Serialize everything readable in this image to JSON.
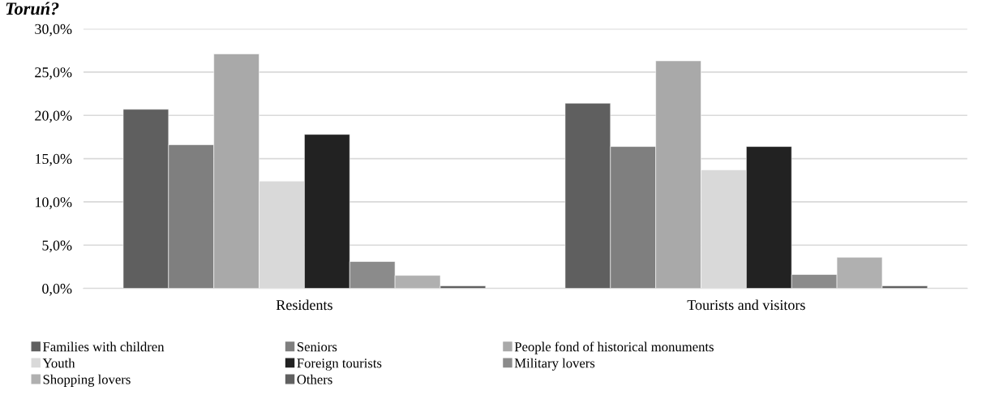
{
  "chart_data": {
    "type": "bar",
    "title": "Toruń?",
    "categories": [
      "Residents",
      "Tourists and visitors"
    ],
    "series": [
      {
        "name": "Families with children",
        "color": "#5f5f5f",
        "values": [
          20.7,
          21.4
        ]
      },
      {
        "name": "Seniors",
        "color": "#7f7f7f",
        "values": [
          16.6,
          16.4
        ]
      },
      {
        "name": "People fond of historical monuments",
        "color": "#a9a9a9",
        "values": [
          27.1,
          26.3
        ]
      },
      {
        "name": "Youth",
        "color": "#d9d9d9",
        "values": [
          12.4,
          13.7
        ]
      },
      {
        "name": "Foreign tourists",
        "color": "#222222",
        "values": [
          17.8,
          16.4
        ]
      },
      {
        "name": "Military lovers",
        "color": "#8b8b8b",
        "values": [
          3.1,
          1.6
        ]
      },
      {
        "name": "Shopping lovers",
        "color": "#b0b0b0",
        "values": [
          1.5,
          3.6
        ]
      },
      {
        "name": "Others",
        "color": "#606060",
        "values": [
          0.3,
          0.3
        ]
      }
    ],
    "ylim": [
      0,
      30
    ],
    "yticks": [
      {
        "value": 0,
        "label": "0,0%"
      },
      {
        "value": 5,
        "label": "5,0%"
      },
      {
        "value": 10,
        "label": "10,0%"
      },
      {
        "value": 15,
        "label": "15,0%"
      },
      {
        "value": 20,
        "label": "20,0%"
      },
      {
        "value": 25,
        "label": "25,0%"
      },
      {
        "value": 30,
        "label": "30,0%"
      }
    ],
    "grid": "y",
    "legend": "bottom"
  }
}
